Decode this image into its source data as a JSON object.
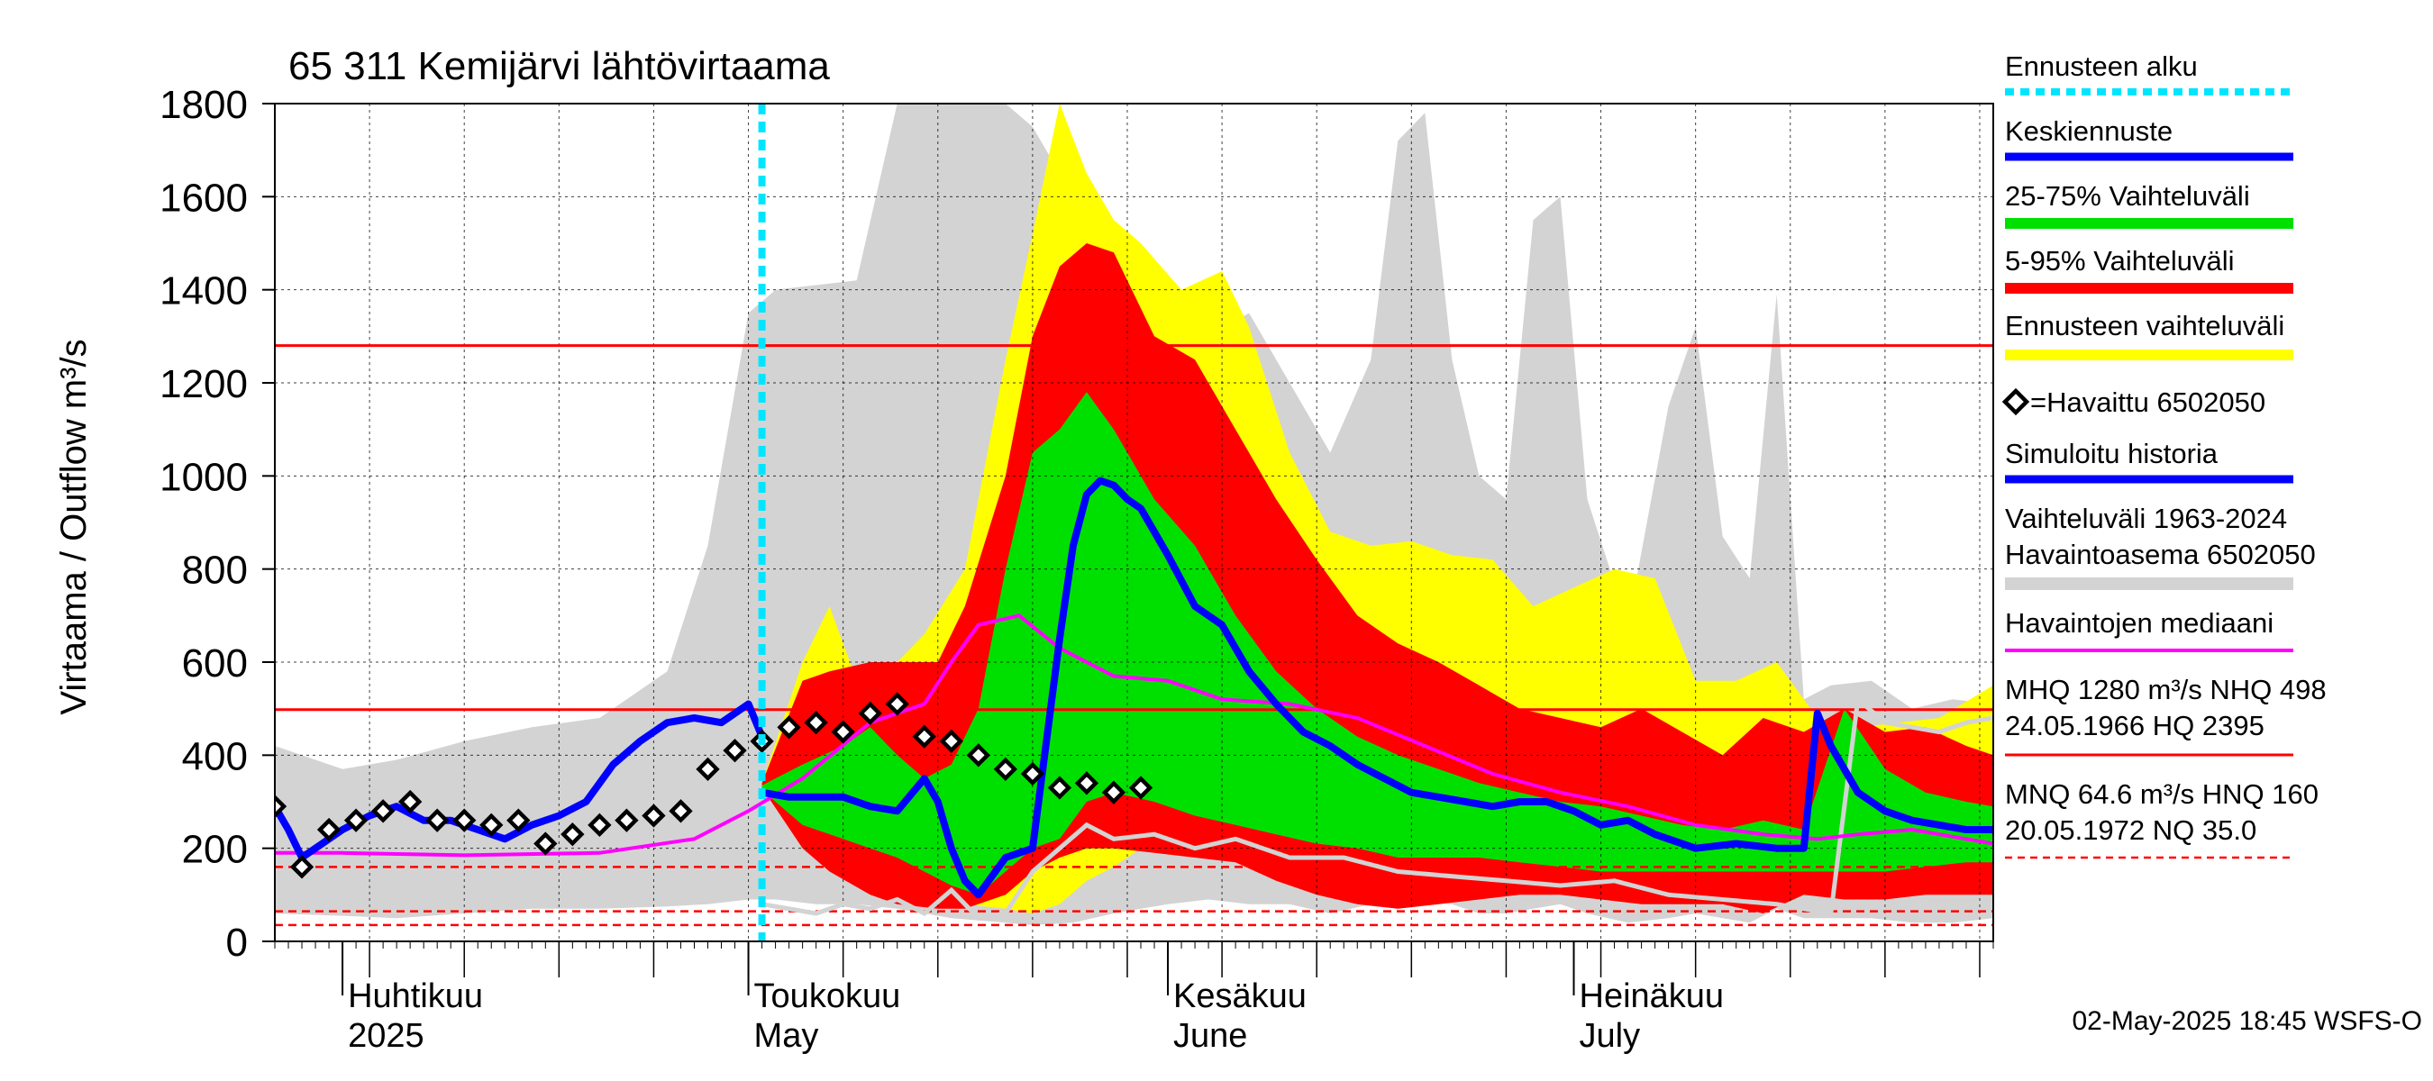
{
  "chart_data": {
    "type": "area",
    "title": "65 311 Kemijärvi lähtövirtaama",
    "ylabel": "Virtaama / Outflow    m³/s",
    "ylim": [
      0,
      1800
    ],
    "y_ticks": [
      0,
      200,
      400,
      600,
      800,
      1000,
      1200,
      1400,
      1600,
      1800
    ],
    "x_range": [
      "2025-03-27",
      "2025-08-01"
    ],
    "x_month_labels": [
      {
        "date": "2025-04-01",
        "fi": "Huhtikuu",
        "en": "2025"
      },
      {
        "date": "2025-05-01",
        "fi": "Toukokuu",
        "en": "May"
      },
      {
        "date": "2025-06-01",
        "fi": "Kesäkuu",
        "en": "June"
      },
      {
        "date": "2025-07-01",
        "fi": "Heinäkuu",
        "en": "July"
      }
    ],
    "grid": true,
    "legend_position": "right",
    "forecast_start": "2025-05-02",
    "footer": "02-May-2025 18:45 WSFS-O",
    "reference_lines": [
      {
        "name": "MHQ",
        "value": 1280,
        "style": "solid",
        "color": "#ff0000"
      },
      {
        "name": "NHQ",
        "value": 498,
        "style": "solid",
        "color": "#ff0000"
      },
      {
        "name": "MNQ",
        "value": 64.6,
        "style": "dashed",
        "color": "#ff0000"
      },
      {
        "name": "HNQ",
        "value": 160,
        "style": "dashed",
        "color": "#ff0000"
      },
      {
        "name": "NQ",
        "value": 35.0,
        "style": "dashed",
        "color": "#ff0000"
      }
    ],
    "legend": {
      "forecast_start": "Ennusteen alku",
      "mean_forecast": "Keskiennuste",
      "band_25_75": "25-75% Vaihteluväli",
      "band_5_95": "5-95% Vaihteluväli",
      "band_full": "Ennusteen vaihteluväli",
      "observed": "=Havaittu 6502050",
      "simulated": "Simuloitu historia",
      "hist_range_1": "Vaihteluväli 1963-2024",
      "hist_range_2": " Havaintoasema 6502050",
      "median": "Havaintojen mediaani",
      "stats_1": "MHQ 1280 m³/s NHQ  498",
      "stats_2": "24.05.1966 HQ 2395",
      "stats_3": "MNQ 64.6 m³/s HNQ  160",
      "stats_4": "20.05.1972 NQ 35.0"
    },
    "colors": {
      "hist_range": "#d3d3d3",
      "band_full": "#ffff00",
      "band_5_95": "#ff0000",
      "band_25_75": "#00e000",
      "mean": "#0000ff",
      "median": "#ff00ff",
      "observed": "#000000",
      "simulated": "#0000ff",
      "hist_min": "#d3d3d3",
      "forecast_start": "#00e5ff",
      "ref_line": "#ff0000"
    },
    "series": {
      "hist_range": {
        "x": [
          "2025-03-27",
          "2025-04-01",
          "2025-04-05",
          "2025-04-10",
          "2025-04-15",
          "2025-04-20",
          "2025-04-25",
          "2025-04-28",
          "2025-05-01",
          "2025-05-03",
          "2025-05-06",
          "2025-05-09",
          "2025-05-12",
          "2025-05-14",
          "2025-05-16",
          "2025-05-20",
          "2025-05-22",
          "2025-05-25",
          "2025-05-28",
          "2025-06-01",
          "2025-06-04",
          "2025-06-07",
          "2025-06-10",
          "2025-06-13",
          "2025-06-16",
          "2025-06-18",
          "2025-06-20",
          "2025-06-22",
          "2025-06-24",
          "2025-06-26",
          "2025-06-28",
          "2025-06-30",
          "2025-07-02",
          "2025-07-05",
          "2025-07-08",
          "2025-07-10",
          "2025-07-12",
          "2025-07-14",
          "2025-07-16",
          "2025-07-18",
          "2025-07-20",
          "2025-07-23",
          "2025-07-26",
          "2025-07-29",
          "2025-08-01"
        ],
        "high": [
          420,
          370,
          390,
          430,
          460,
          480,
          580,
          850,
          1350,
          1400,
          1410,
          1420,
          1800,
          1800,
          1800,
          1800,
          1750,
          1600,
          1550,
          1350,
          1300,
          1350,
          1200,
          1050,
          1250,
          1720,
          1780,
          1250,
          1000,
          950,
          1550,
          1600,
          950,
          680,
          1150,
          1320,
          870,
          780,
          1390,
          520,
          550,
          560,
          500,
          520,
          510
        ],
        "low": [
          60,
          55,
          50,
          60,
          70,
          70,
          75,
          80,
          90,
          90,
          80,
          80,
          70,
          60,
          50,
          40,
          35,
          40,
          60,
          80,
          90,
          80,
          80,
          60,
          80,
          90,
          90,
          80,
          60,
          60,
          70,
          80,
          60,
          40,
          50,
          60,
          50,
          40,
          70,
          50,
          50,
          50,
          40,
          40,
          50
        ]
      },
      "band_full": {
        "x": [
          "2025-05-02",
          "2025-05-05",
          "2025-05-07",
          "2025-05-09",
          "2025-05-12",
          "2025-05-14",
          "2025-05-17",
          "2025-05-20",
          "2025-05-22",
          "2025-05-24",
          "2025-05-26",
          "2025-05-28",
          "2025-05-30",
          "2025-06-02",
          "2025-06-05",
          "2025-06-07",
          "2025-06-10",
          "2025-06-13",
          "2025-06-16",
          "2025-06-19",
          "2025-06-22",
          "2025-06-25",
          "2025-06-28",
          "2025-07-01",
          "2025-07-04",
          "2025-07-07",
          "2025-07-10",
          "2025-07-13",
          "2025-07-16",
          "2025-07-19",
          "2025-07-22",
          "2025-07-25",
          "2025-07-28",
          "2025-08-01"
        ],
        "high": [
          340,
          600,
          720,
          560,
          600,
          660,
          800,
          1250,
          1520,
          1800,
          1650,
          1550,
          1500,
          1400,
          1440,
          1320,
          1050,
          880,
          850,
          860,
          830,
          820,
          720,
          760,
          800,
          780,
          560,
          560,
          600,
          480,
          460,
          470,
          480,
          550
        ],
        "low": [
          330,
          280,
          230,
          200,
          160,
          120,
          80,
          70,
          60,
          80,
          130,
          160,
          200,
          240,
          250,
          220,
          220,
          200,
          170,
          160,
          150,
          140,
          150,
          160,
          140,
          120,
          110,
          100,
          100,
          100,
          100,
          110,
          110,
          120
        ]
      },
      "band_5_95": {
        "x": [
          "2025-05-02",
          "2025-05-05",
          "2025-05-07",
          "2025-05-10",
          "2025-05-12",
          "2025-05-15",
          "2025-05-17",
          "2025-05-20",
          "2025-05-22",
          "2025-05-24",
          "2025-05-26",
          "2025-05-28",
          "2025-05-31",
          "2025-06-03",
          "2025-06-06",
          "2025-06-09",
          "2025-06-12",
          "2025-06-15",
          "2025-06-18",
          "2025-06-21",
          "2025-06-24",
          "2025-06-27",
          "2025-06-30",
          "2025-07-03",
          "2025-07-06",
          "2025-07-09",
          "2025-07-12",
          "2025-07-15",
          "2025-07-18",
          "2025-07-21",
          "2025-07-24",
          "2025-07-27",
          "2025-07-30",
          "2025-08-01"
        ],
        "high": [
          340,
          560,
          580,
          600,
          600,
          600,
          720,
          1000,
          1300,
          1450,
          1500,
          1480,
          1300,
          1250,
          1100,
          950,
          820,
          700,
          640,
          600,
          550,
          500,
          480,
          460,
          500,
          450,
          400,
          480,
          450,
          500,
          450,
          460,
          420,
          400
        ],
        "low": [
          330,
          200,
          150,
          100,
          80,
          70,
          70,
          100,
          150,
          180,
          200,
          200,
          190,
          180,
          170,
          130,
          100,
          80,
          70,
          80,
          90,
          100,
          100,
          90,
          80,
          80,
          80,
          60,
          100,
          90,
          90,
          100,
          100,
          100
        ]
      },
      "band_25_75": {
        "x": [
          "2025-05-02",
          "2025-05-05",
          "2025-05-08",
          "2025-05-10",
          "2025-05-12",
          "2025-05-14",
          "2025-05-16",
          "2025-05-18",
          "2025-05-20",
          "2025-05-22",
          "2025-05-24",
          "2025-05-26",
          "2025-05-28",
          "2025-05-31",
          "2025-06-03",
          "2025-06-06",
          "2025-06-09",
          "2025-06-12",
          "2025-06-15",
          "2025-06-18",
          "2025-06-21",
          "2025-06-24",
          "2025-06-27",
          "2025-06-30",
          "2025-07-03",
          "2025-07-06",
          "2025-07-09",
          "2025-07-12",
          "2025-07-15",
          "2025-07-18",
          "2025-07-21",
          "2025-07-24",
          "2025-07-27",
          "2025-07-30",
          "2025-08-01"
        ],
        "high": [
          335,
          380,
          420,
          460,
          400,
          350,
          380,
          500,
          800,
          1050,
          1100,
          1180,
          1100,
          950,
          850,
          700,
          580,
          500,
          440,
          400,
          370,
          340,
          320,
          300,
          290,
          270,
          250,
          240,
          260,
          240,
          500,
          370,
          320,
          300,
          290
        ],
        "low": [
          325,
          250,
          220,
          200,
          180,
          150,
          120,
          100,
          150,
          200,
          220,
          300,
          320,
          300,
          270,
          250,
          230,
          210,
          200,
          180,
          180,
          180,
          170,
          160,
          150,
          150,
          150,
          150,
          150,
          150,
          150,
          150,
          160,
          170,
          170
        ]
      },
      "mean": {
        "x": [
          "2025-05-02",
          "2025-05-04",
          "2025-05-06",
          "2025-05-08",
          "2025-05-10",
          "2025-05-12",
          "2025-05-14",
          "2025-05-15",
          "2025-05-16",
          "2025-05-17",
          "2025-05-18",
          "2025-05-20",
          "2025-05-22",
          "2025-05-24",
          "2025-05-25",
          "2025-05-26",
          "2025-05-27",
          "2025-05-28",
          "2025-05-29",
          "2025-05-30",
          "2025-06-01",
          "2025-06-03",
          "2025-06-05",
          "2025-06-07",
          "2025-06-09",
          "2025-06-11",
          "2025-06-13",
          "2025-06-15",
          "2025-06-17",
          "2025-06-19",
          "2025-06-21",
          "2025-06-23",
          "2025-06-25",
          "2025-06-27",
          "2025-06-29",
          "2025-07-01",
          "2025-07-03",
          "2025-07-05",
          "2025-07-07",
          "2025-07-10",
          "2025-07-13",
          "2025-07-16",
          "2025-07-17",
          "2025-07-18",
          "2025-07-19",
          "2025-07-20",
          "2025-07-22",
          "2025-07-24",
          "2025-07-26",
          "2025-07-28",
          "2025-07-30",
          "2025-08-01"
        ],
        "values": [
          320,
          310,
          310,
          310,
          290,
          280,
          350,
          300,
          200,
          130,
          100,
          180,
          200,
          650,
          850,
          960,
          990,
          980,
          950,
          930,
          830,
          720,
          680,
          580,
          510,
          450,
          420,
          380,
          350,
          320,
          310,
          300,
          290,
          300,
          300,
          280,
          250,
          260,
          230,
          200,
          210,
          200,
          200,
          200,
          490,
          420,
          320,
          280,
          260,
          250,
          240,
          240
        ]
      },
      "median": {
        "x": [
          "2025-03-27",
          "2025-04-01",
          "2025-04-10",
          "2025-04-20",
          "2025-04-27",
          "2025-05-01",
          "2025-05-05",
          "2025-05-10",
          "2025-05-14",
          "2025-05-16",
          "2025-05-18",
          "2025-05-21",
          "2025-05-24",
          "2025-05-26",
          "2025-05-28",
          "2025-06-01",
          "2025-06-05",
          "2025-06-10",
          "2025-06-15",
          "2025-06-20",
          "2025-06-25",
          "2025-06-30",
          "2025-07-05",
          "2025-07-10",
          "2025-07-15",
          "2025-07-19",
          "2025-07-22",
          "2025-07-26",
          "2025-07-30",
          "2025-08-01"
        ],
        "values": [
          190,
          190,
          185,
          190,
          220,
          280,
          350,
          470,
          510,
          600,
          680,
          700,
          630,
          600,
          570,
          560,
          520,
          510,
          480,
          420,
          360,
          320,
          290,
          250,
          230,
          220,
          230,
          240,
          220,
          210
        ]
      },
      "hist_min": {
        "x": [
          "2025-05-02",
          "2025-05-06",
          "2025-05-08",
          "2025-05-10",
          "2025-05-12",
          "2025-05-14",
          "2025-05-16",
          "2025-05-18",
          "2025-05-20",
          "2025-05-22",
          "2025-05-24",
          "2025-05-26",
          "2025-05-28",
          "2025-05-31",
          "2025-06-03",
          "2025-06-06",
          "2025-06-10",
          "2025-06-14",
          "2025-06-18",
          "2025-06-22",
          "2025-06-26",
          "2025-06-30",
          "2025-07-04",
          "2025-07-08",
          "2025-07-12",
          "2025-07-16",
          "2025-07-18",
          "2025-07-20",
          "2025-07-22",
          "2025-07-24",
          "2025-07-26",
          "2025-07-28",
          "2025-07-30",
          "2025-08-01"
        ],
        "values": [
          80,
          60,
          80,
          70,
          90,
          60,
          110,
          50,
          60,
          150,
          200,
          250,
          220,
          230,
          200,
          220,
          180,
          180,
          150,
          140,
          130,
          120,
          130,
          100,
          90,
          80,
          70,
          60,
          520,
          470,
          460,
          450,
          470,
          480
        ]
      },
      "simulated": {
        "x": [
          "2025-03-27",
          "2025-03-28",
          "2025-03-29",
          "2025-03-30",
          "2025-04-01",
          "2025-04-03",
          "2025-04-05",
          "2025-04-07",
          "2025-04-09",
          "2025-04-11",
          "2025-04-13",
          "2025-04-15",
          "2025-04-17",
          "2025-04-19",
          "2025-04-21",
          "2025-04-23",
          "2025-04-25",
          "2025-04-27",
          "2025-04-29",
          "2025-05-01",
          "2025-05-02"
        ],
        "values": [
          290,
          240,
          180,
          200,
          240,
          270,
          290,
          260,
          260,
          240,
          220,
          250,
          270,
          300,
          380,
          430,
          470,
          480,
          470,
          510,
          440
        ]
      },
      "observed": {
        "x": [
          "2025-03-27",
          "2025-03-29",
          "2025-03-31",
          "2025-04-02",
          "2025-04-04",
          "2025-04-06",
          "2025-04-08",
          "2025-04-10",
          "2025-04-12",
          "2025-04-14",
          "2025-04-16",
          "2025-04-18",
          "2025-04-20",
          "2025-04-22",
          "2025-04-24",
          "2025-04-26",
          "2025-04-28",
          "2025-04-30",
          "2025-05-02",
          "2025-05-04",
          "2025-05-06",
          "2025-05-08",
          "2025-05-10",
          "2025-05-12",
          "2025-05-14",
          "2025-05-16",
          "2025-05-18",
          "2025-05-20",
          "2025-05-22",
          "2025-05-24",
          "2025-05-26",
          "2025-05-28",
          "2025-05-30"
        ],
        "values": [
          290,
          160,
          240,
          260,
          280,
          300,
          260,
          260,
          250,
          260,
          210,
          230,
          250,
          260,
          270,
          280,
          370,
          410,
          430,
          460,
          470,
          450,
          490,
          510,
          440,
          430,
          400,
          370,
          360,
          330,
          340,
          320,
          330
        ]
      }
    }
  }
}
